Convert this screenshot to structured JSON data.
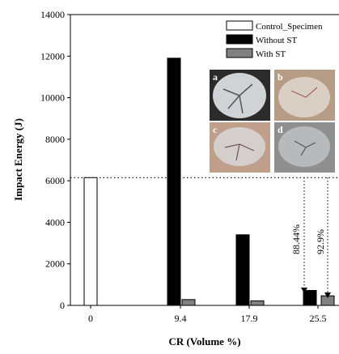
{
  "chart_data": {
    "type": "bar",
    "title": "",
    "xlabel": "CR (Volume %)",
    "ylabel": "Impact Energy (J)",
    "ylim": [
      0,
      14000
    ],
    "yticks": [
      0,
      2000,
      4000,
      6000,
      8000,
      10000,
      12000,
      14000
    ],
    "categories": [
      "0",
      "9.4",
      "17.9",
      "25.5"
    ],
    "series": [
      {
        "name": "Control_Specimen",
        "values": [
          6150,
          null,
          null,
          null
        ],
        "color": "#ffffff"
      },
      {
        "name": "Without ST",
        "values": [
          null,
          11900,
          3400,
          720
        ],
        "color": "#000000"
      },
      {
        "name": "With ST",
        "values": [
          null,
          280,
          220,
          460
        ],
        "color": "#808080"
      }
    ],
    "reference_line": {
      "value": 6150,
      "style": "dotted"
    },
    "annotations": [
      {
        "text": "88.44%",
        "category": "25.5"
      },
      {
        "text": "92.9%",
        "category": "25.5"
      }
    ],
    "inset_photos": [
      "a",
      "b",
      "c",
      "d"
    ],
    "legend_position": "top-right",
    "grid": false
  }
}
